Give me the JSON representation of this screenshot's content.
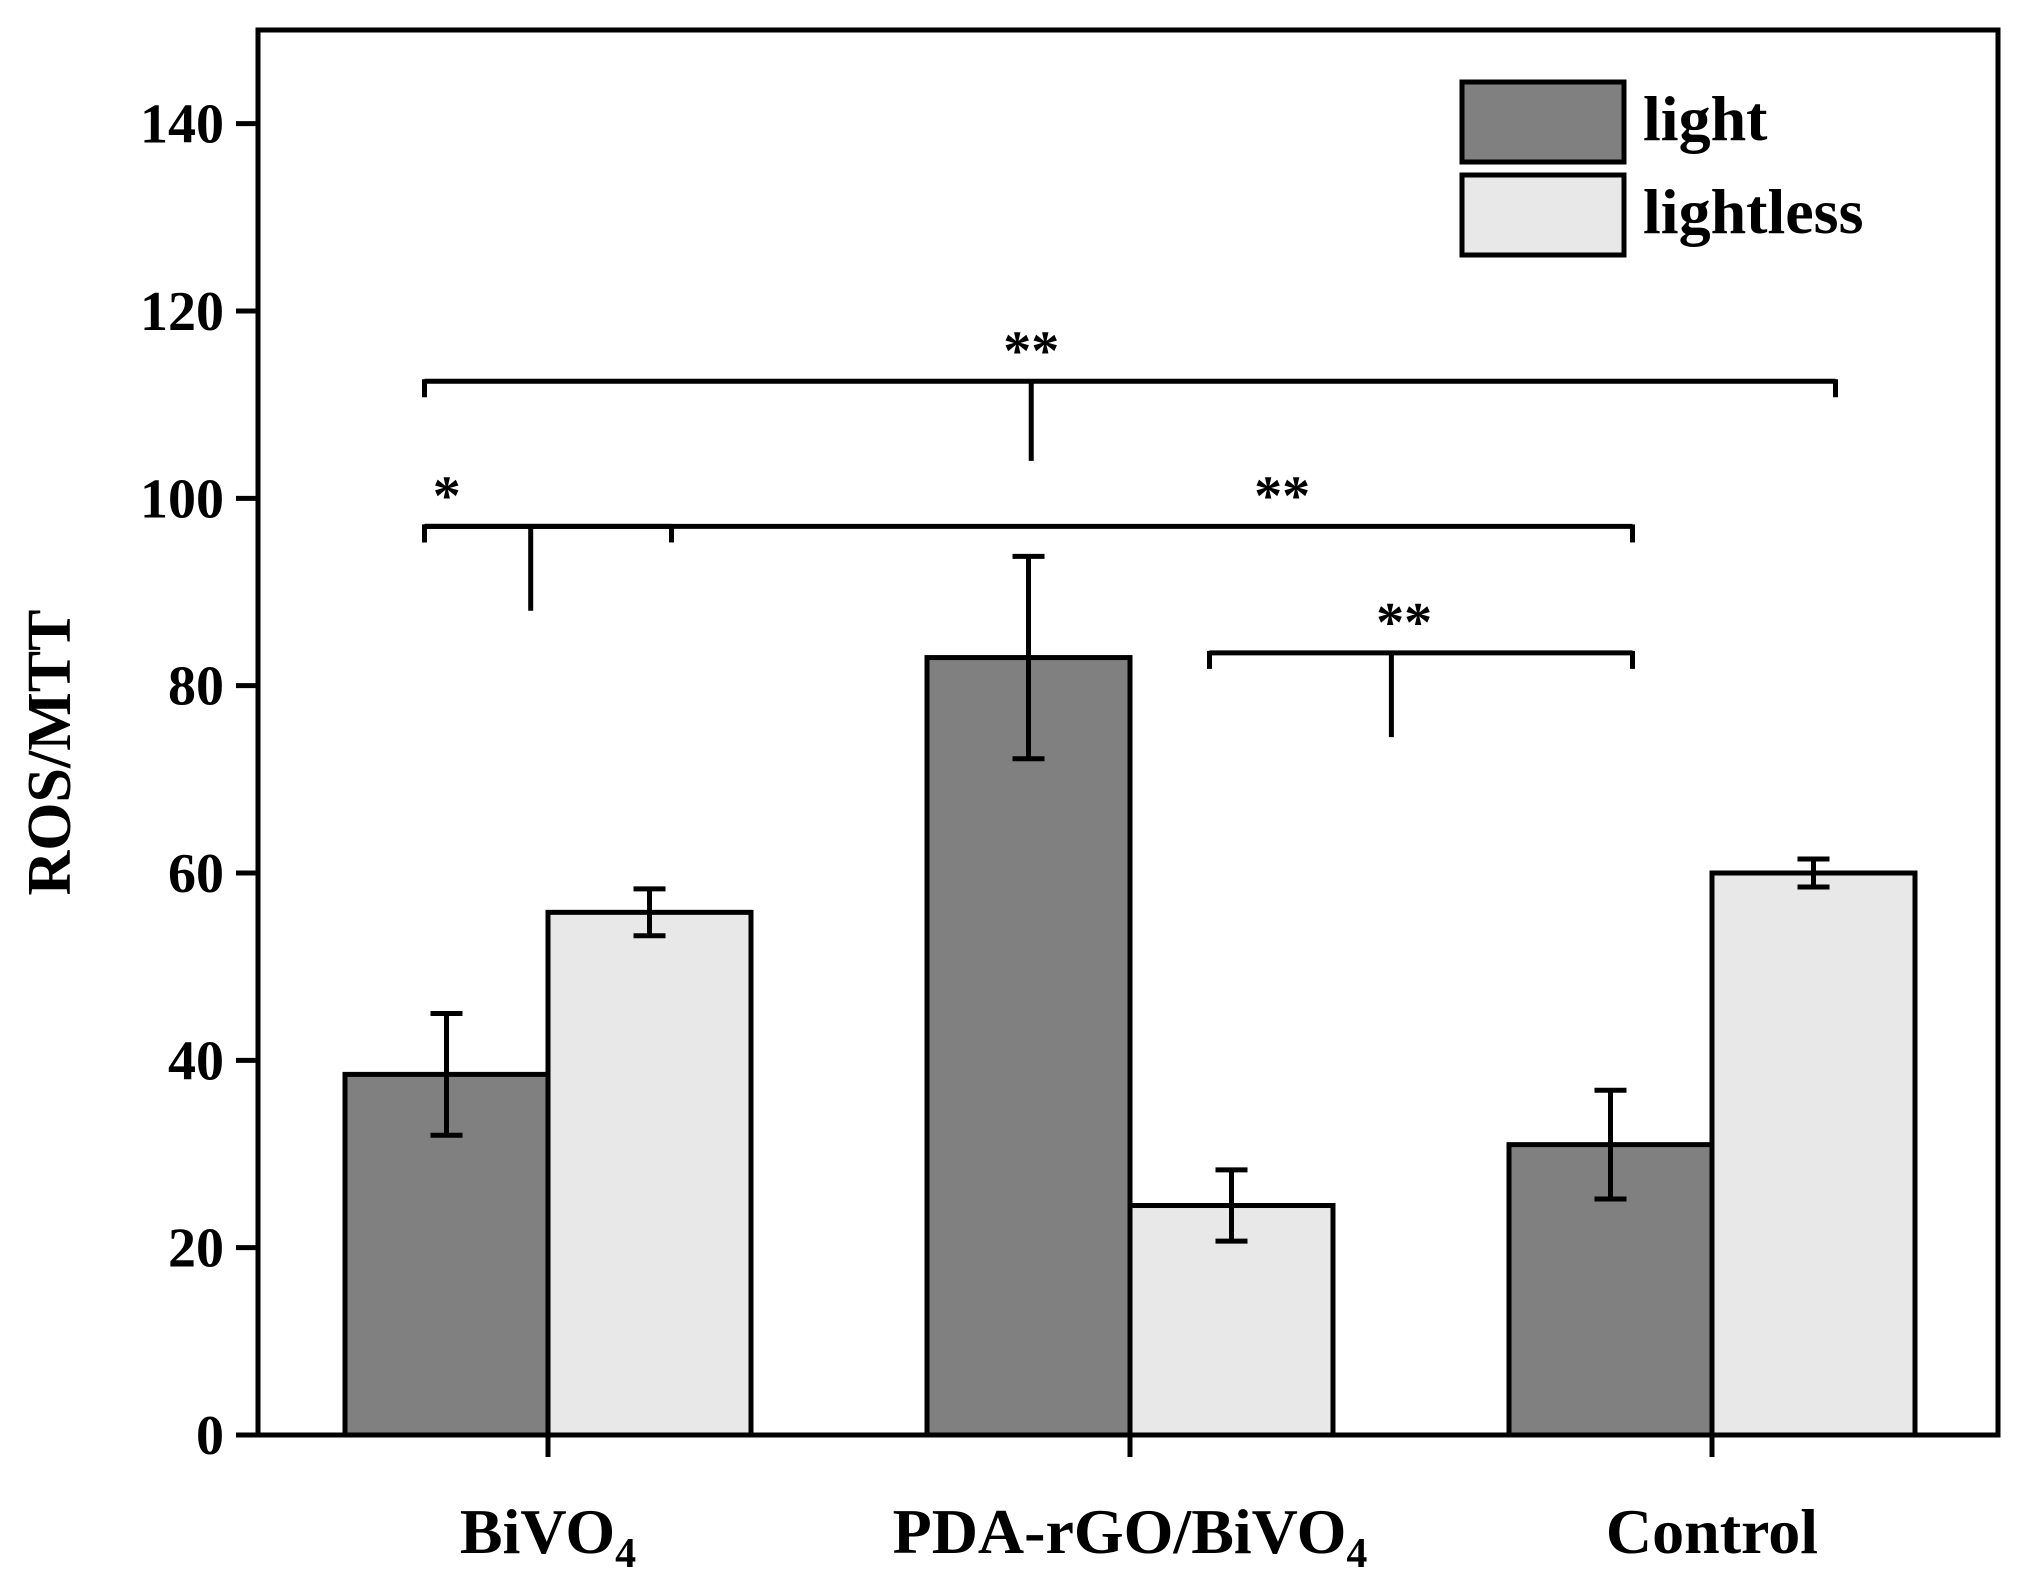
{
  "chart_data": {
    "type": "bar",
    "title": "",
    "xlabel": "",
    "ylabel": "ROS/MTT",
    "ylim": [
      0,
      150
    ],
    "yticks": [
      "0",
      "20",
      "40",
      "60",
      "80",
      "100",
      "120",
      "140"
    ],
    "categories": [
      {
        "main": "BiVO",
        "sub": "4",
        "tail": ""
      },
      {
        "main": "PDA-rGO/BiVO",
        "sub": "4",
        "tail": ""
      },
      {
        "main": "Control",
        "sub": "",
        "tail": ""
      }
    ],
    "series": [
      {
        "name": "light",
        "color": "#808080",
        "values": [
          38.5,
          83.0,
          31.0
        ],
        "errors": [
          6.5,
          10.8,
          5.8
        ]
      },
      {
        "name": "lightless",
        "color": "#e8e8e8",
        "values": [
          55.8,
          24.5,
          60.0
        ],
        "errors": [
          2.5,
          3.8,
          1.5
        ]
      }
    ],
    "legend_position": "top-right",
    "significance": [
      {
        "label": "**",
        "y_data": 112.5,
        "drop_data": 104.0,
        "ends": [
          [
            0,
            0
          ],
          [
            2,
            1
          ]
        ],
        "label_at": 0.43
      },
      {
        "label": "*",
        "y_data": 97.0,
        "drop_data": 88.0,
        "ends": [
          [
            0,
            0
          ],
          [
            0,
            1
          ]
        ],
        "label_at": 0.09
      },
      {
        "label": "**",
        "y_data": 97.0,
        "drop_data": null,
        "ends": [
          [
            0,
            0
          ],
          [
            2,
            0
          ]
        ],
        "label_at": 0.71
      },
      {
        "label": "**",
        "y_data": 83.5,
        "drop_data": 74.5,
        "ends": [
          [
            1,
            1
          ],
          [
            2,
            0
          ]
        ],
        "label_at": 0.46
      }
    ]
  }
}
